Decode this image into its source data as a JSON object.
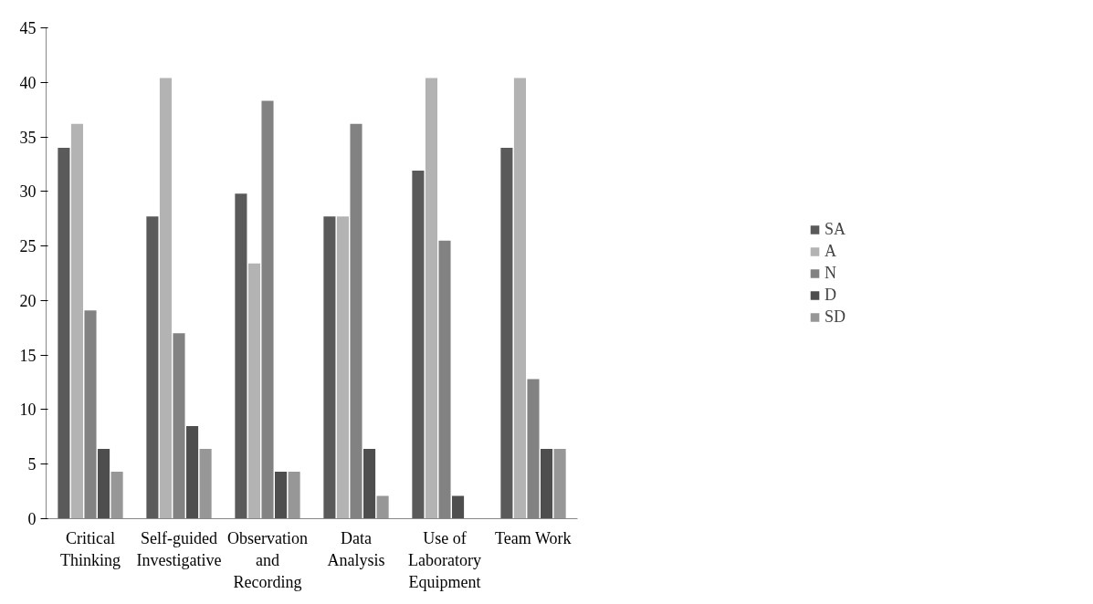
{
  "chart_data": {
    "type": "bar",
    "categories": [
      "Critical Thinking",
      "Self-guided Investigative",
      "Observation and Recording",
      "Data Analysis",
      "Use of Laboratory Equipment",
      "Team Work"
    ],
    "series": [
      {
        "name": "SA",
        "color": "#5a5a5a",
        "values": [
          34.0,
          27.7,
          29.8,
          27.7,
          31.9,
          34.0
        ]
      },
      {
        "name": "A",
        "color": "#b3b3b3",
        "values": [
          36.2,
          40.4,
          23.4,
          27.7,
          40.4,
          40.4
        ]
      },
      {
        "name": "N",
        "color": "#828282",
        "values": [
          19.1,
          17.0,
          38.3,
          36.2,
          25.5,
          12.8
        ]
      },
      {
        "name": "D",
        "color": "#4e4e4e",
        "values": [
          6.4,
          8.5,
          4.3,
          6.4,
          2.1,
          6.4
        ]
      },
      {
        "name": "SD",
        "color": "#979797",
        "values": [
          4.3,
          6.4,
          4.3,
          2.1,
          0,
          6.4
        ]
      }
    ],
    "ylim": [
      0,
      45
    ],
    "yticks": [
      0,
      5,
      10,
      15,
      20,
      25,
      30,
      35,
      40,
      45
    ],
    "grid": false,
    "legend": "right"
  }
}
